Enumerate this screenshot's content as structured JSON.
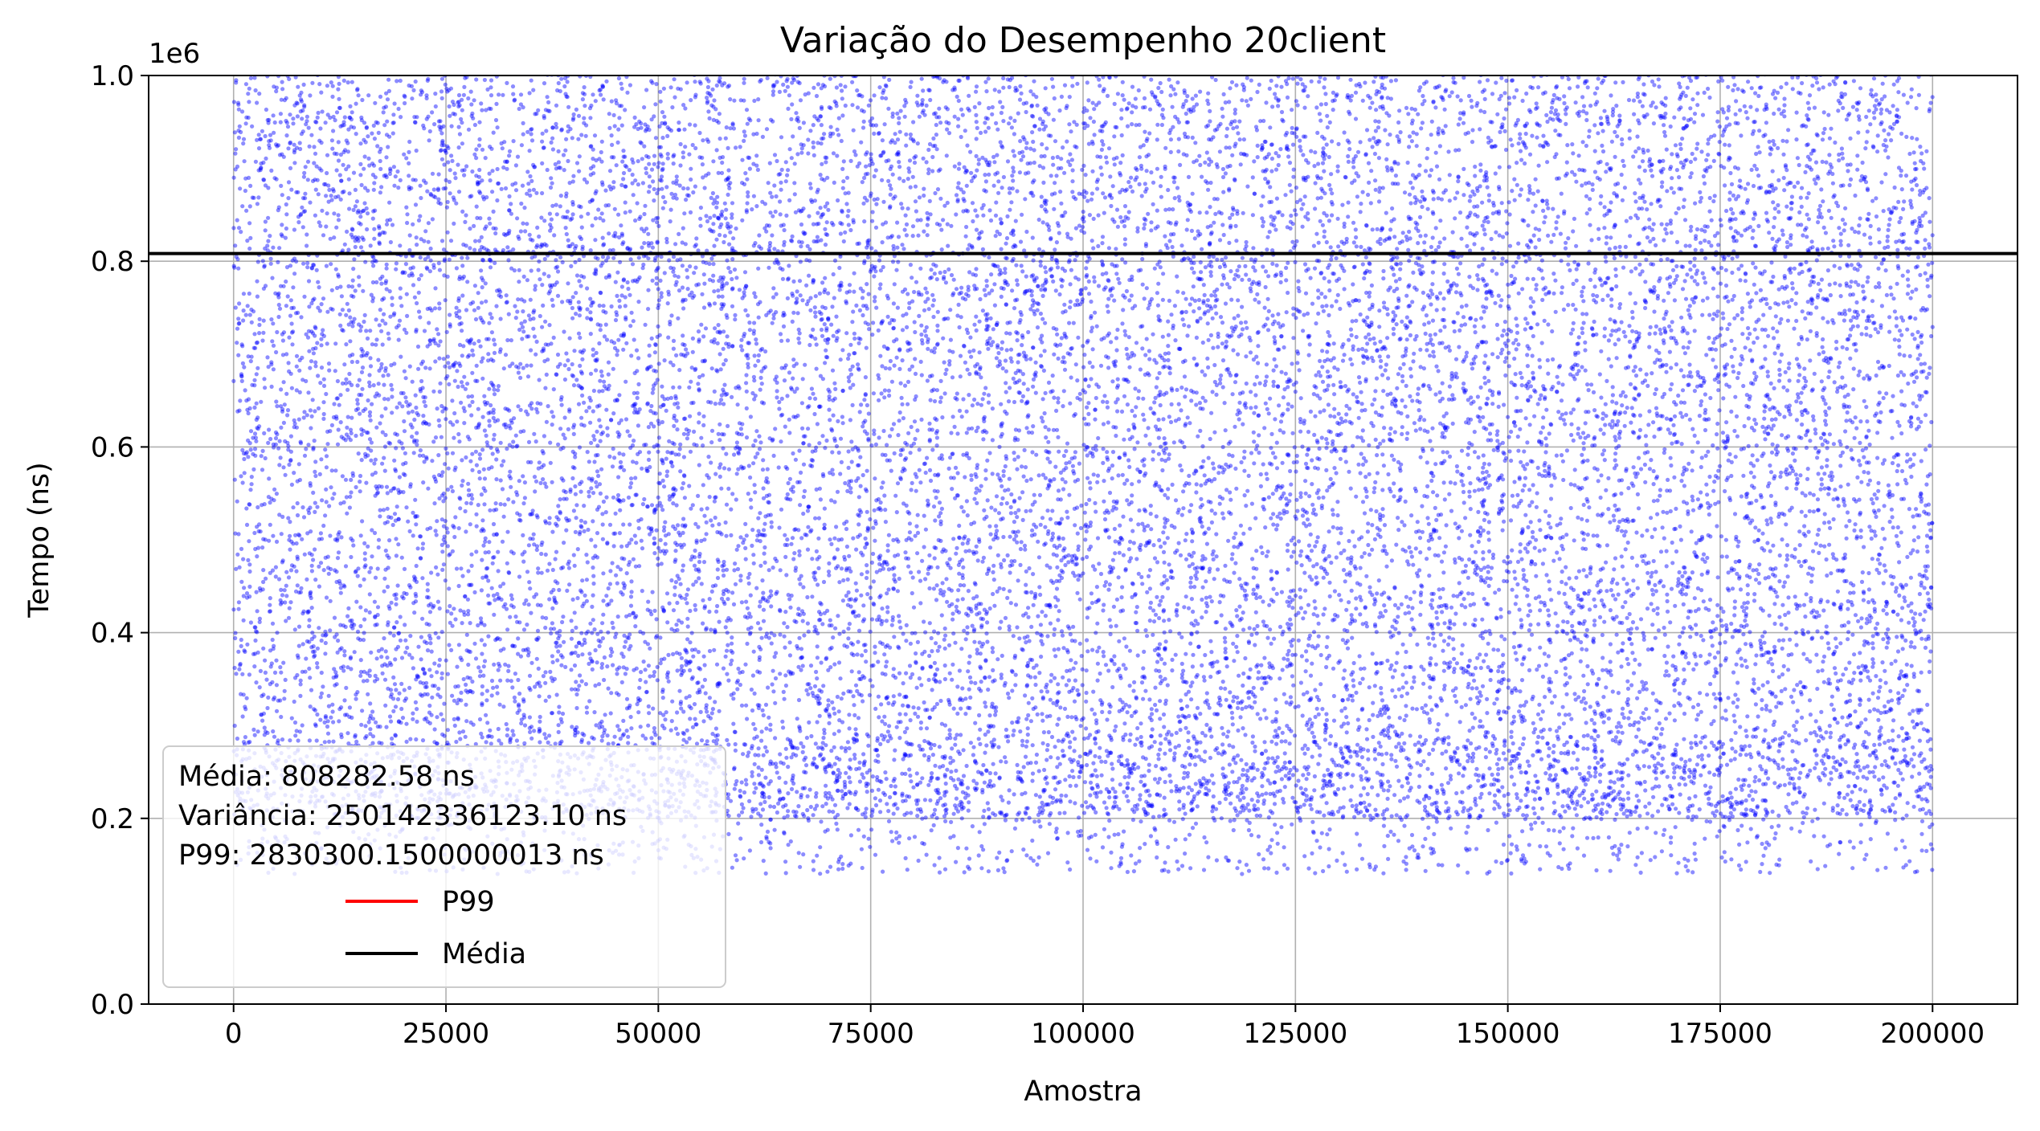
{
  "chart_data": {
    "type": "scatter",
    "title": "Variação do Desempenho 20client",
    "xlabel": "Amostra",
    "ylabel": "Tempo (ns)",
    "y_offset_label": "1e6",
    "xlim": [
      -10000,
      210000
    ],
    "ylim": [
      0,
      1000000
    ],
    "x_ticks": [
      0,
      25000,
      50000,
      75000,
      100000,
      125000,
      150000,
      175000,
      200000
    ],
    "x_tick_labels": [
      "0",
      "25000",
      "50000",
      "75000",
      "100000",
      "125000",
      "150000",
      "175000",
      "200000"
    ],
    "y_ticks": [
      0,
      200000,
      400000,
      600000,
      800000,
      1000000
    ],
    "y_tick_labels": [
      "0.0",
      "0.2",
      "0.4",
      "0.6",
      "0.8",
      "1.0"
    ],
    "grid": true,
    "series": [
      {
        "kind": "scatter",
        "color": "#0000ff",
        "x_range": [
          0,
          200000
        ],
        "y_range_approx": [
          140000,
          1000000
        ],
        "n_points": 200000
      }
    ],
    "lines": [
      {
        "name": "P99",
        "y": 2830300.15,
        "color": "#ff0000"
      },
      {
        "name": "Média",
        "y": 808282.58,
        "color": "#000000"
      }
    ],
    "annotations": [
      "Média: 808282.58 ns",
      "Variância: 250142336123.10 ns",
      "P99: 2830300.1500000013 ns"
    ],
    "legend": {
      "placement": "lower-left",
      "entries": [
        {
          "label": "P99",
          "color": "#ff0000"
        },
        {
          "label": "Média",
          "color": "#000000"
        }
      ]
    }
  }
}
